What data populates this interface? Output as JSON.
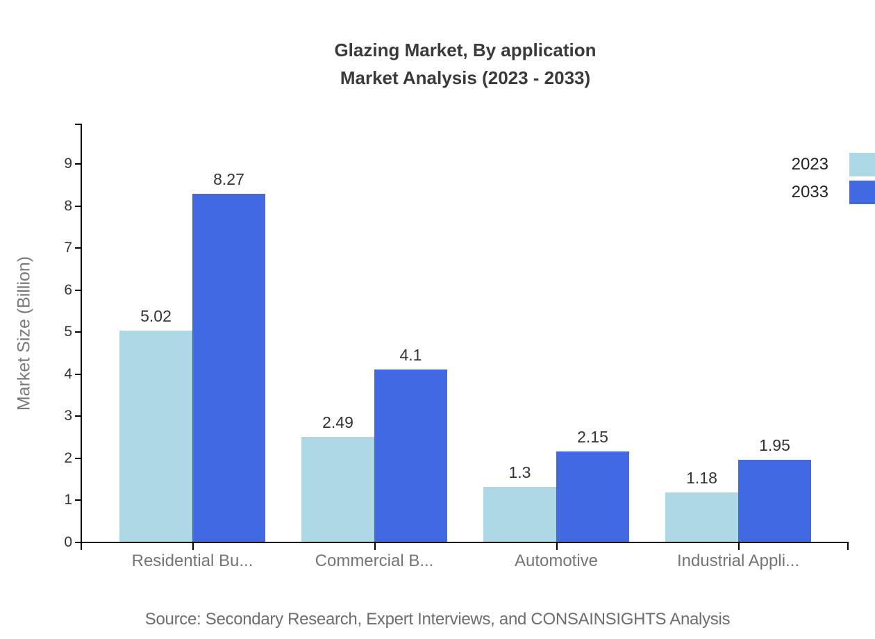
{
  "chart_data": {
    "type": "bar",
    "title_line1": "Glazing Market, By application",
    "title_line2": "Market Analysis (2023 - 2033)",
    "ylabel": "Market Size (Billion)",
    "xlabel": "",
    "categories": [
      "Residential Bu...",
      "Commercial B...",
      "Automotive",
      "Industrial Appli..."
    ],
    "series": [
      {
        "name": "2023",
        "color": "#add8e6",
        "values": [
          5.02,
          2.49,
          1.3,
          1.18
        ]
      },
      {
        "name": "2033",
        "color": "#4169e1",
        "values": [
          8.27,
          4.1,
          2.15,
          1.95
        ]
      }
    ],
    "yticks": [
      0,
      1,
      2,
      3,
      4,
      5,
      6,
      7,
      8,
      9
    ],
    "ylim": [
      0,
      9.95
    ],
    "grid": false,
    "legend_position": "top-right",
    "axis_color": "#000000",
    "source": "Source: Secondary Research, Expert Interviews, and CONSAINSIGHTS Analysis"
  }
}
